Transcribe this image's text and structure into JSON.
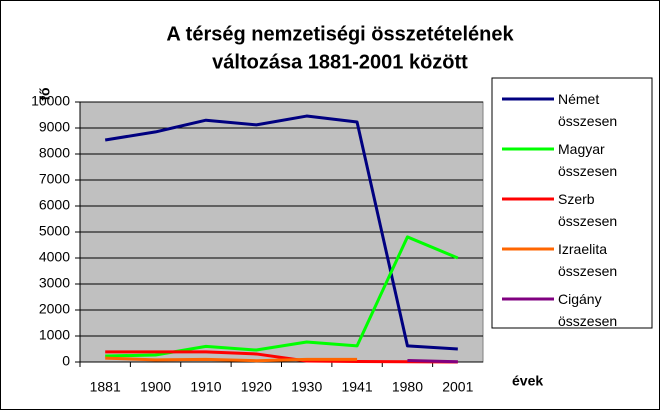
{
  "chart_data": {
    "type": "line",
    "title": [
      "A térség nemzetiségi összetételének",
      "változása 1881-2001 között"
    ],
    "y_label": "fő",
    "x_label": "évek",
    "categories": [
      "1881",
      "1900",
      "1910",
      "1920",
      "1930",
      "1941",
      "1980",
      "2001"
    ],
    "series": [
      {
        "name": "Német összesen",
        "color": "#000080",
        "values": [
          8540,
          8850,
          9300,
          9120,
          9460,
          9230,
          620,
          500
        ]
      },
      {
        "name": "Magyar összesen",
        "color": "#00ff00",
        "values": [
          230,
          270,
          600,
          460,
          770,
          620,
          4810,
          4000
        ]
      },
      {
        "name": "Szerb összesen",
        "color": "#ff0000",
        "values": [
          390,
          390,
          390,
          310,
          40,
          20,
          10,
          0
        ]
      },
      {
        "name": "Izraelita összesen",
        "color": "#ff6600",
        "values": [
          150,
          80,
          100,
          50,
          100,
          100,
          null,
          null
        ]
      },
      {
        "name": "Cigány összesen",
        "color": "#800080",
        "values": [
          null,
          null,
          null,
          null,
          null,
          null,
          60,
          10
        ]
      }
    ],
    "ylim": [
      0,
      10000
    ],
    "yticks": [
      0,
      1000,
      2000,
      3000,
      4000,
      5000,
      6000,
      7000,
      8000,
      9000,
      10000
    ],
    "grid": true,
    "legend": "right",
    "plot_background": "#c0c0c0"
  }
}
